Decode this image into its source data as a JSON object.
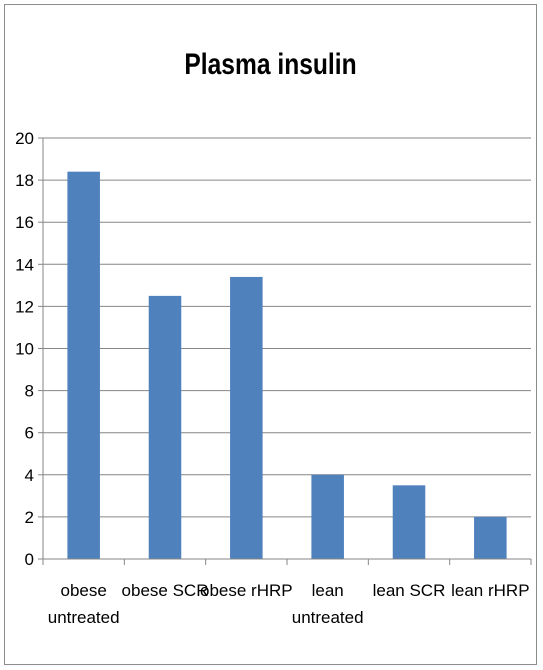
{
  "chart_data": {
    "type": "bar",
    "title": "Plasma insulin",
    "xlabel": "",
    "ylabel": "",
    "categories": [
      [
        "obese",
        "untreated"
      ],
      [
        "obese SCR"
      ],
      [
        "obese rHRP"
      ],
      [
        "lean",
        "untreated"
      ],
      [
        "lean SCR"
      ],
      [
        "lean rHRP"
      ]
    ],
    "values": [
      18.4,
      12.5,
      13.4,
      4.0,
      3.5,
      2.0
    ],
    "ylim": [
      0,
      20
    ],
    "yticks": [
      "0",
      "2",
      "4",
      "6",
      "8",
      "10",
      "12",
      "14",
      "16",
      "18",
      "20"
    ],
    "grid": true,
    "legend": "none",
    "colors": {
      "bar": "#4f81bd",
      "grid": "#868686",
      "axis": "#868686"
    }
  }
}
